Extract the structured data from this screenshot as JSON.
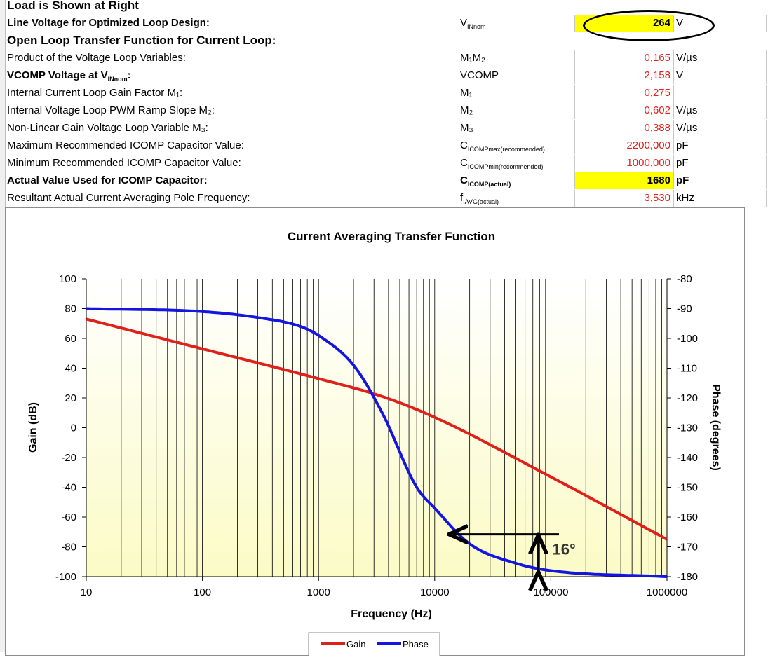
{
  "rows": [
    {
      "label": "Load is Shown at Right"
    },
    {
      "label": "Line Voltage for Optimized Loop Design:",
      "sym_main": "V",
      "sym_sub": "INnom",
      "value": "264",
      "unit": "V"
    },
    {
      "label": "Open Loop Transfer Function for Current Loop:"
    },
    {
      "label": "Product of the Voltage Loop Variables:",
      "sym": "M₁M₂",
      "value": "0,165",
      "unit": "V/µs"
    },
    {
      "label_main": "VCOMP Voltage at V",
      "label_sub": "INnom",
      "label_end": ":",
      "sym": "VCOMP",
      "value": "2,158",
      "unit": "V"
    },
    {
      "label": "Internal Current Loop Gain Factor M₁:",
      "sym": "M₁",
      "value": "0,275",
      "unit": ""
    },
    {
      "label": "Internal Voltage Loop PWM Ramp Slope M₂:",
      "sym": "M₂",
      "value": "0,602",
      "unit": "V/µs"
    },
    {
      "label": "Non-Linear Gain Voltage Loop Variable M₃:",
      "sym": "M₃",
      "value": "0,388",
      "unit": "V/µs"
    },
    {
      "label": "Maximum Recommended ICOMP Capacitor Value:",
      "sym_main": "C",
      "sym_sub": "ICOMPmax(recommended)",
      "value": "2200,000",
      "unit": "pF"
    },
    {
      "label": "Minimum Recommended ICOMP Capacitor Value:",
      "sym_main": "C",
      "sym_sub": "ICOMPmin(recommended)",
      "value": "1000,000",
      "unit": "pF"
    },
    {
      "label": "Actual Value Used for ICOMP Capacitor:",
      "sym_main": "C",
      "sym_sub": "ICOMP(actual)",
      "value": "1680",
      "unit": "pF"
    },
    {
      "label": "Resultant Actual Current Averaging Pole Frequency:",
      "sym_main": "f",
      "sym_sub": "IAVG(actual)",
      "value": "3,530",
      "unit": "kHz"
    }
  ],
  "chart_data": {
    "type": "line",
    "title": "Current Averaging Transfer Function",
    "xlabel": "Frequency (Hz)",
    "ylabel": "Gain (dB)",
    "y2label": "Phase (degrees)",
    "x_scale": "log",
    "xlim": [
      10,
      1000000
    ],
    "ylim": [
      -100,
      100
    ],
    "y2lim": [
      -180,
      -80
    ],
    "x_ticks": [
      "10",
      "100",
      "1000",
      "10000",
      "100000",
      "1000000"
    ],
    "y_ticks": [
      "100",
      "80",
      "60",
      "40",
      "20",
      "0",
      "-20",
      "-40",
      "-60",
      "-80",
      "-100"
    ],
    "y2_ticks": [
      "-80",
      "-90",
      "-100",
      "-110",
      "-120",
      "-130",
      "-140",
      "-150",
      "-160",
      "-170",
      "-180"
    ],
    "grid": "vertical log gridlines",
    "legend": "bottom",
    "series": [
      {
        "name": "Gain",
        "color": "#e0201b",
        "axis": "left",
        "x": [
          10,
          100,
          1000,
          3530,
          10000,
          100000,
          1000000
        ],
        "y": [
          73,
          53,
          33,
          21,
          7,
          -33,
          -75
        ]
      },
      {
        "name": "Phase",
        "color": "#1515e0",
        "axis": "right",
        "x": [
          10,
          100,
          300,
          700,
          1000,
          2000,
          3530,
          7000,
          10000,
          20000,
          50000,
          100000,
          1000000
        ],
        "y": [
          -90,
          -91,
          -93,
          -96,
          -99,
          -109,
          -125,
          -150,
          -157,
          -169,
          -175.5,
          -178,
          -180
        ]
      }
    ],
    "annotations": [
      {
        "text": "16°",
        "x": 78000,
        "y2": -170
      }
    ]
  }
}
